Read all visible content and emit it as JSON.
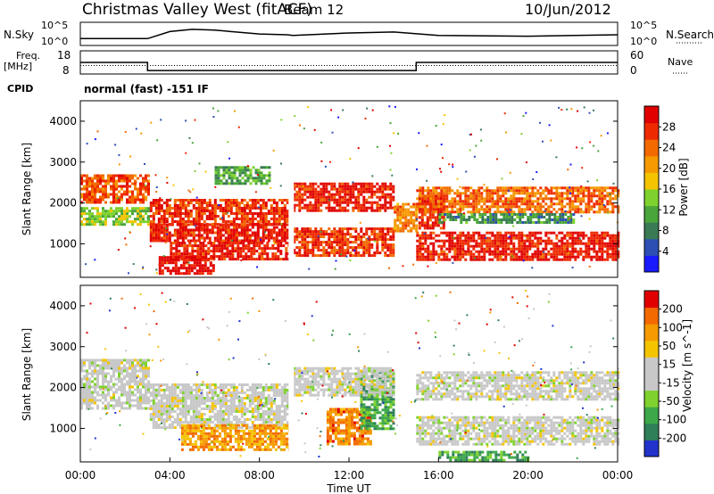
{
  "header": {
    "station": "Christmas Valley West (fitACF)",
    "beam": "Beam 12",
    "date": "10/Jun/2012"
  },
  "strip_labels": {
    "nsky": "N.Sky",
    "nsearch": "N.Search",
    "freq_line1": "Freq.",
    "freq_line2": "[MHz]",
    "nave": "Nave",
    "cpid": "CPID",
    "cpid_value": "normal (fast) -151 IF"
  },
  "chart_data": [
    {
      "type": "line",
      "title": "N.Sky / N.Search",
      "ylabel_left": "N.Sky",
      "ylabel_right": "N.Search",
      "yticks_left": [
        "10^5",
        "10^0"
      ],
      "yticks_right": [
        "10^5",
        "10^0"
      ],
      "scale": "log",
      "series": [
        {
          "name": "N.Sky",
          "style": "solid",
          "x": [
            0,
            3,
            4,
            5,
            6,
            8,
            9.25,
            9.5,
            12,
            14,
            16,
            20,
            24
          ],
          "y": [
            30,
            30,
            1000,
            3000,
            2000,
            300,
            200,
            150,
            500,
            800,
            150,
            100,
            200
          ]
        },
        {
          "name": "N.Search",
          "style": "dotted",
          "x": [
            0,
            24
          ],
          "y": [
            1,
            1
          ]
        }
      ]
    },
    {
      "type": "line",
      "title": "Freq / Nave",
      "ylabel_left": "Freq. [MHz]",
      "ylabel_right": "Nave",
      "yticks_left": [
        18,
        8
      ],
      "yticks_right": [
        60,
        0
      ],
      "series": [
        {
          "name": "Freq",
          "style": "solid",
          "x": [
            0,
            3,
            3,
            15,
            15,
            24
          ],
          "y": [
            13,
            13,
            9.5,
            9.5,
            13,
            13
          ]
        },
        {
          "name": "Nave",
          "style": "dotted",
          "x": [
            0,
            24
          ],
          "y": [
            22,
            22
          ]
        }
      ]
    },
    {
      "type": "heatmap",
      "panel": "power",
      "ylabel": "Slant Range [km]",
      "xlim": [
        0,
        24
      ],
      "ylim": [
        180,
        4500
      ],
      "yticks": [
        1000,
        2000,
        3000,
        4000
      ],
      "colorbar": {
        "label": "Power [dB]",
        "ticks": [
          4,
          8,
          12,
          16,
          20,
          24,
          28
        ],
        "colors": [
          "#1a1aff",
          "#2d4fb4",
          "#3a7a55",
          "#4aa53a",
          "#7fd22e",
          "#f5c400",
          "#f59a00",
          "#f26a00",
          "#ee2a00",
          "#e00000"
        ]
      },
      "bands": [
        {
          "x": [
            0,
            3
          ],
          "y_from": 2000,
          "y_to": 2700,
          "level": 0.8
        },
        {
          "x": [
            0,
            3
          ],
          "y_from": 1500,
          "y_to": 1900,
          "level": 0.45
        },
        {
          "x": [
            3.1,
            9.3
          ],
          "y_from": 1050,
          "y_to": 1500,
          "level": 0.9
        },
        {
          "x": [
            3.1,
            9.3
          ],
          "y_from": 1500,
          "y_to": 2100,
          "level": 0.85
        },
        {
          "x": [
            4,
            9.3
          ],
          "y_from": 600,
          "y_to": 1050,
          "level": 0.9
        },
        {
          "x": [
            3.5,
            6
          ],
          "y_from": 250,
          "y_to": 700,
          "level": 0.95
        },
        {
          "x": [
            6,
            8.5
          ],
          "y_from": 2500,
          "y_to": 2900,
          "level": 0.35
        },
        {
          "x": [
            9.5,
            14
          ],
          "y_from": 1800,
          "y_to": 2500,
          "level": 0.9
        },
        {
          "x": [
            9.5,
            14
          ],
          "y_from": 700,
          "y_to": 1400,
          "level": 0.85
        },
        {
          "x": [
            14,
            15
          ],
          "y_from": 1300,
          "y_to": 2000,
          "level": 0.7
        },
        {
          "x": [
            15.1,
            16.2
          ],
          "y_from": 1400,
          "y_to": 2200,
          "level": 0.9
        },
        {
          "x": [
            15,
            24
          ],
          "y_from": 1800,
          "y_to": 2400,
          "level": 0.75
        },
        {
          "x": [
            15,
            24
          ],
          "y_from": 600,
          "y_to": 1300,
          "level": 0.9
        },
        {
          "x": [
            16,
            22
          ],
          "y_from": 1500,
          "y_to": 1750,
          "level": 0.3
        }
      ]
    },
    {
      "type": "heatmap",
      "panel": "velocity",
      "xlabel": "Time UT",
      "ylabel": "Slant Range [km]",
      "xlim": [
        0,
        24
      ],
      "ylim": [
        180,
        4500
      ],
      "xticks": [
        "00:00",
        "04:00",
        "08:00",
        "12:00",
        "16:00",
        "20:00",
        "00:00"
      ],
      "yticks": [
        1000,
        2000,
        3000,
        4000
      ],
      "colorbar": {
        "label": "Velocity [m s^-1]",
        "ticks": [
          200,
          100,
          50,
          15,
          -15,
          -50,
          -100,
          -200
        ],
        "colors": [
          "#2233cc",
          "#2f7f5a",
          "#3ca84a",
          "#7fd22e",
          "#c8c8c8",
          "#c8c8c8",
          "#f5c400",
          "#f59a00",
          "#f26a00",
          "#e00000"
        ]
      },
      "bands": [
        {
          "x": [
            0,
            3
          ],
          "y_from": 1500,
          "y_to": 2700,
          "level": 0.5
        },
        {
          "x": [
            3.1,
            9.3
          ],
          "y_from": 1050,
          "y_to": 2100,
          "level": 0.5
        },
        {
          "x": [
            4.5,
            9.3
          ],
          "y_from": 500,
          "y_to": 1100,
          "level": 0.75
        },
        {
          "x": [
            11,
            13
          ],
          "y_from": 600,
          "y_to": 1500,
          "level": 0.8
        },
        {
          "x": [
            12.5,
            14
          ],
          "y_from": 1000,
          "y_to": 2400,
          "level": 0.25
        },
        {
          "x": [
            9.5,
            14
          ],
          "y_from": 1800,
          "y_to": 2500,
          "level": 0.5
        },
        {
          "x": [
            15,
            24
          ],
          "y_from": 1700,
          "y_to": 2400,
          "level": 0.5
        },
        {
          "x": [
            15,
            24
          ],
          "y_from": 600,
          "y_to": 1300,
          "level": 0.5
        },
        {
          "x": [
            16,
            20
          ],
          "y_from": 250,
          "y_to": 450,
          "level": 0.25
        }
      ]
    }
  ]
}
